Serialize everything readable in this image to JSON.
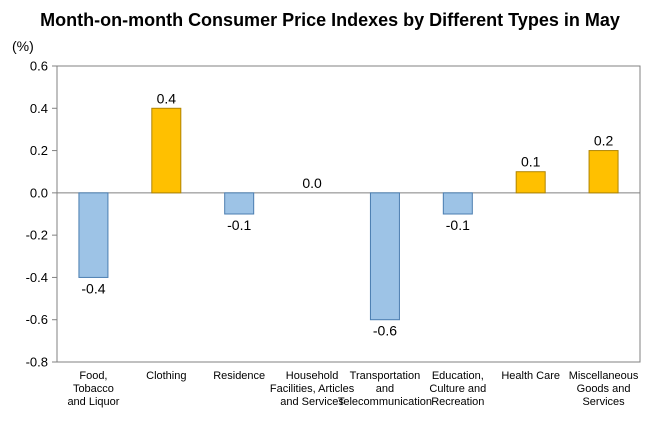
{
  "chart_data": {
    "type": "bar",
    "title": "Month-on-month Consumer Price Indexes by Different Types in May",
    "unit_label": "(%)",
    "xlabel": "",
    "ylabel": "",
    "ylim": [
      -0.8,
      0.6
    ],
    "yticks": [
      0.6,
      0.4,
      0.2,
      0.0,
      -0.2,
      -0.4,
      -0.6,
      -0.8
    ],
    "ytick_labels": [
      "0.6",
      "0.4",
      "0.2",
      "0.0",
      "-0.2",
      "-0.4",
      "-0.6",
      "-0.8"
    ],
    "grid": false,
    "legend": "none",
    "categories": [
      [
        "Food,",
        "Tobacco",
        "and Liquor"
      ],
      [
        "Clothing"
      ],
      [
        "Residence"
      ],
      [
        "Household",
        "Facilities, Articles",
        "and Services"
      ],
      [
        "Transportation",
        "and",
        "Telecommunication"
      ],
      [
        "Education,",
        "Culture and",
        "Recreation"
      ],
      [
        "Health Care"
      ],
      [
        "Miscellaneous",
        "Goods and",
        "Services"
      ]
    ],
    "values": [
      -0.4,
      0.4,
      -0.1,
      0.0,
      -0.6,
      -0.1,
      0.1,
      0.2
    ],
    "value_labels": [
      "-0.4",
      "0.4",
      "-0.1",
      "0.0",
      "-0.6",
      "-0.1",
      "0.1",
      "0.2"
    ],
    "colors": {
      "positive": "#FFC000",
      "positive_border": "#B08400",
      "negative": "#9DC3E6",
      "negative_border": "#4A7DB0",
      "axis": "#808080"
    }
  }
}
